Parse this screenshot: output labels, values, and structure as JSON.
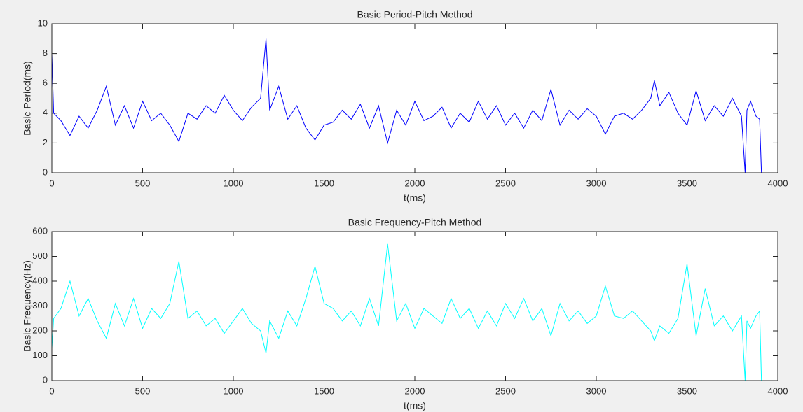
{
  "chart_data": [
    {
      "type": "line",
      "title": "Basic Period-Pitch Method",
      "xlabel": "t(ms)",
      "ylabel": "Basic Period(ms)",
      "color": "#0000ff",
      "xlim": [
        0,
        4000
      ],
      "xticks": [
        0,
        500,
        1000,
        1500,
        2000,
        2500,
        3000,
        3500,
        4000
      ],
      "ylim": [
        0,
        10
      ],
      "yticks": [
        0,
        2,
        4,
        6,
        8,
        10
      ],
      "x": [
        0,
        10,
        50,
        100,
        150,
        200,
        250,
        300,
        350,
        400,
        450,
        500,
        550,
        600,
        650,
        700,
        750,
        800,
        850,
        900,
        950,
        1000,
        1050,
        1100,
        1150,
        1180,
        1200,
        1250,
        1300,
        1350,
        1400,
        1450,
        1500,
        1550,
        1600,
        1650,
        1700,
        1750,
        1800,
        1850,
        1900,
        1950,
        2000,
        2050,
        2100,
        2150,
        2200,
        2250,
        2300,
        2350,
        2400,
        2450,
        2500,
        2550,
        2600,
        2650,
        2700,
        2750,
        2800,
        2850,
        2900,
        2950,
        3000,
        3050,
        3100,
        3150,
        3200,
        3250,
        3300,
        3320,
        3350,
        3400,
        3450,
        3500,
        3550,
        3600,
        3650,
        3700,
        3750,
        3800,
        3820,
        3830,
        3850,
        3880,
        3900,
        3910
      ],
      "values": [
        8,
        4,
        3.5,
        2.5,
        3.8,
        3.0,
        4.2,
        5.8,
        3.2,
        4.5,
        3.0,
        4.8,
        3.5,
        4.0,
        3.2,
        2.1,
        4.0,
        3.6,
        4.5,
        4.0,
        5.2,
        4.2,
        3.5,
        4.4,
        5.0,
        9.0,
        4.2,
        5.8,
        3.6,
        4.5,
        3.0,
        2.2,
        3.2,
        3.4,
        4.2,
        3.6,
        4.6,
        3.0,
        4.5,
        2.0,
        4.2,
        3.2,
        4.8,
        3.5,
        3.8,
        4.4,
        3.0,
        4.0,
        3.4,
        4.8,
        3.6,
        4.5,
        3.2,
        4.0,
        3.0,
        4.2,
        3.5,
        5.6,
        3.2,
        4.2,
        3.6,
        4.3,
        3.8,
        2.6,
        3.8,
        4.0,
        3.6,
        4.2,
        5.0,
        6.2,
        4.5,
        5.4,
        4.0,
        3.2,
        5.5,
        3.5,
        4.5,
        3.8,
        5.0,
        3.8,
        0,
        4.2,
        4.8,
        3.8,
        3.6,
        0
      ]
    },
    {
      "type": "line",
      "title": "Basic Frequency-Pitch Method",
      "xlabel": "t(ms)",
      "ylabel": "Basic Frequency(Hz)",
      "color": "#00ffff",
      "xlim": [
        0,
        4000
      ],
      "xticks": [
        0,
        500,
        1000,
        1500,
        2000,
        2500,
        3000,
        3500,
        4000
      ],
      "ylim": [
        0,
        600
      ],
      "yticks": [
        0,
        100,
        200,
        300,
        400,
        500,
        600
      ],
      "x": [
        0,
        10,
        50,
        100,
        150,
        200,
        250,
        300,
        350,
        400,
        450,
        500,
        550,
        600,
        650,
        700,
        750,
        800,
        850,
        900,
        950,
        1000,
        1050,
        1100,
        1150,
        1180,
        1200,
        1250,
        1300,
        1350,
        1400,
        1450,
        1500,
        1550,
        1600,
        1650,
        1700,
        1750,
        1800,
        1850,
        1900,
        1950,
        2000,
        2050,
        2100,
        2150,
        2200,
        2250,
        2300,
        2350,
        2400,
        2450,
        2500,
        2550,
        2600,
        2650,
        2700,
        2750,
        2800,
        2850,
        2900,
        2950,
        3000,
        3050,
        3100,
        3150,
        3200,
        3250,
        3300,
        3320,
        3350,
        3400,
        3450,
        3500,
        3550,
        3600,
        3650,
        3700,
        3750,
        3800,
        3820,
        3830,
        3850,
        3880,
        3900,
        3910
      ],
      "values": [
        130,
        250,
        290,
        400,
        260,
        330,
        240,
        170,
        310,
        220,
        330,
        210,
        290,
        250,
        310,
        480,
        250,
        280,
        220,
        250,
        190,
        240,
        290,
        230,
        200,
        110,
        240,
        170,
        280,
        220,
        330,
        460,
        310,
        290,
        240,
        280,
        220,
        330,
        220,
        550,
        240,
        310,
        210,
        290,
        260,
        230,
        330,
        250,
        290,
        210,
        280,
        220,
        310,
        250,
        330,
        240,
        290,
        180,
        310,
        240,
        280,
        230,
        260,
        380,
        260,
        250,
        280,
        240,
        200,
        160,
        220,
        190,
        250,
        470,
        180,
        370,
        220,
        260,
        200,
        260,
        0,
        240,
        210,
        260,
        280,
        0
      ]
    }
  ]
}
